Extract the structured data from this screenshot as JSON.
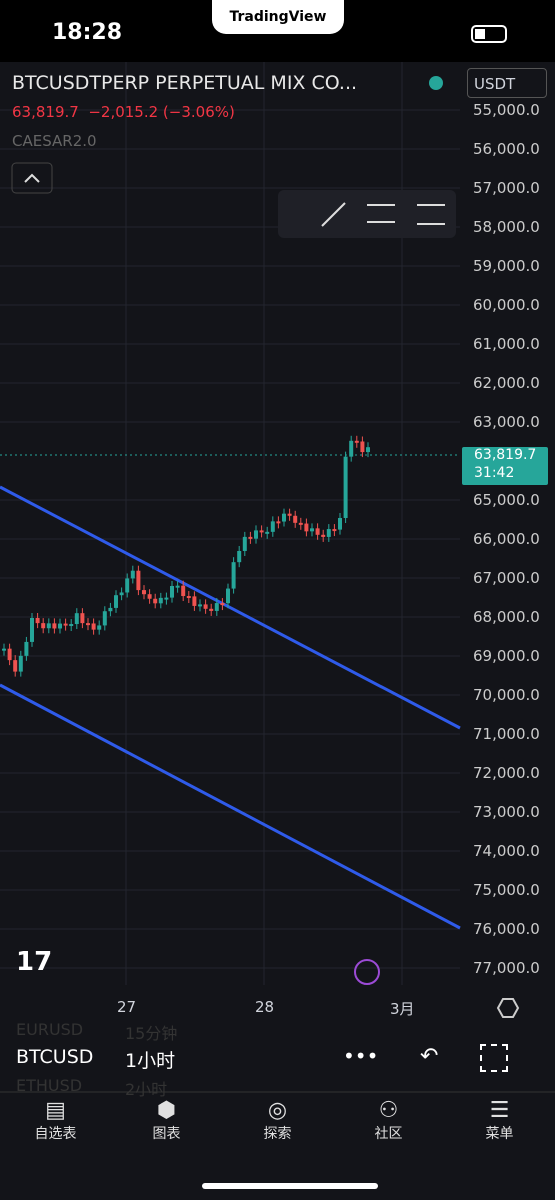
{
  "status_bar": {
    "time": "18:28",
    "app": "TradingView"
  },
  "symbol": {
    "name": "BTCUSDTPERP PERPETUAL MIX CO...",
    "price": "63,819.7",
    "change": "−2,015.2 (−3.06%)",
    "indicator": "CAESAR2.0",
    "currency": "USDT"
  },
  "price_axis": {
    "ticks": [
      "55,000.0",
      "56,000.0",
      "57,000.0",
      "58,000.0",
      "59,000.0",
      "60,000.0",
      "61,000.0",
      "62,000.0",
      "63,000.0",
      "65,000.0",
      "66,000.0",
      "67,000.0",
      "68,000.0",
      "69,000.0",
      "70,000.0",
      "71,000.0",
      "72,000.0",
      "73,000.0",
      "74,000.0",
      "75,000.0",
      "76,000.0",
      "77,000.0"
    ],
    "last_price": "63,819.7",
    "countdown": "31:42"
  },
  "time_axis": [
    "27",
    "28",
    "3月"
  ],
  "toolbar": {
    "symbol": "BTCUSD",
    "interval": "1小时",
    "ghost": [
      "EURUSD",
      "15分钟",
      "ETHUSD",
      "2小时"
    ]
  },
  "tabs": [
    "自选表",
    "图表",
    "探索",
    "社区",
    "菜单"
  ]
}
